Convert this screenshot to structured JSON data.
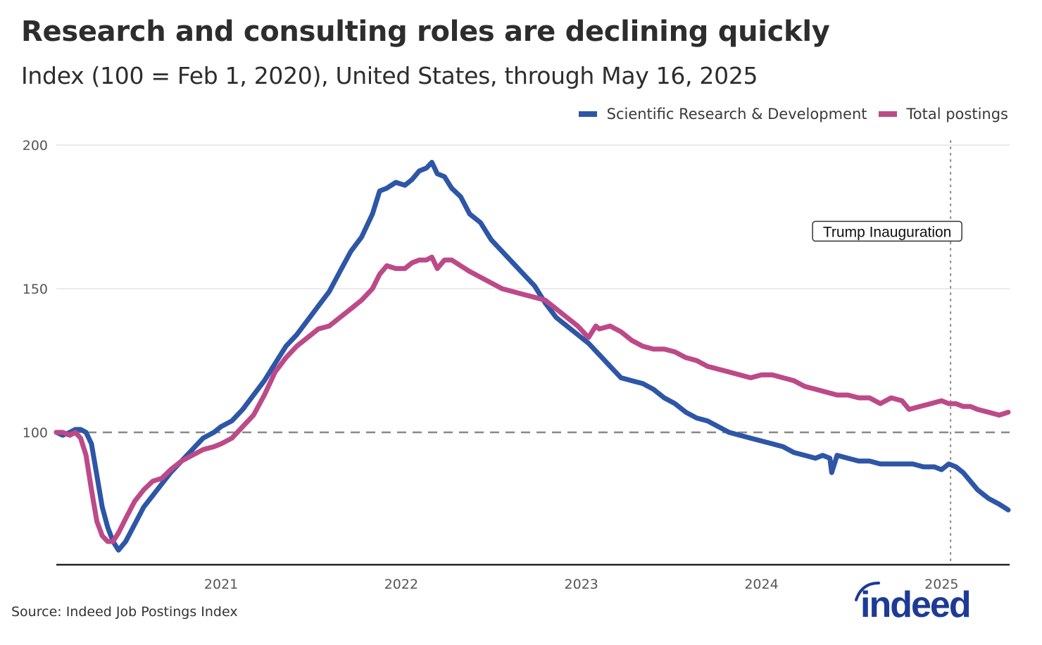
{
  "title": "Research and consulting roles are declining quickly",
  "subtitle": "Index (100 = Feb 1, 2020), United States, through May 16, 2025",
  "source": "Source: Indeed Job Postings Index",
  "logo_text": "indeed",
  "colors": {
    "research": "#2E56A6",
    "total": "#BC4A88",
    "grid": "#e3e3e3",
    "baseline": "#888888",
    "axis": "#222222",
    "logo": "#1d3b96"
  },
  "chart_data": {
    "type": "line",
    "title": "Research and consulting roles are declining quickly",
    "subtitle": "Index (100 = Feb 1, 2020), United States, through May 16, 2025",
    "xlabel": "",
    "ylabel": "",
    "x_unit": "decimal year",
    "xlim": [
      2020.085,
      2025.37
    ],
    "ylim": [
      54,
      200
    ],
    "yticks": [
      100,
      150,
      200
    ],
    "ytick_labels": [
      "100",
      "150",
      "200"
    ],
    "xticks": [
      2021,
      2022,
      2023,
      2024,
      2025
    ],
    "xtick_labels": [
      "2021",
      "2022",
      "2023",
      "2024",
      "2025"
    ],
    "grid": "horizontal",
    "legend_position": "top-right",
    "reference_line": {
      "y": 100,
      "style": "dashed"
    },
    "annotations": [
      {
        "x": 2025.05,
        "text": "Trump Inauguration",
        "style": "dotted vertical line with boxed label",
        "label_y": 170
      }
    ],
    "series": [
      {
        "name": "Scientific Research & Development",
        "color": "#2E56A6",
        "x": [
          2020.085,
          2020.12,
          2020.16,
          2020.19,
          2020.22,
          2020.25,
          2020.28,
          2020.31,
          2020.34,
          2020.37,
          2020.4,
          2020.43,
          2020.47,
          2020.52,
          2020.57,
          2020.62,
          2020.67,
          2020.72,
          2020.78,
          2020.84,
          2020.9,
          2020.96,
          2021.0,
          2021.06,
          2021.12,
          2021.18,
          2021.24,
          2021.3,
          2021.36,
          2021.42,
          2021.48,
          2021.54,
          2021.6,
          2021.66,
          2021.72,
          2021.78,
          2021.84,
          2021.88,
          2021.92,
          2021.97,
          2022.02,
          2022.06,
          2022.1,
          2022.14,
          2022.17,
          2022.2,
          2022.24,
          2022.28,
          2022.33,
          2022.38,
          2022.44,
          2022.5,
          2022.56,
          2022.62,
          2022.68,
          2022.74,
          2022.8,
          2022.86,
          2022.92,
          2022.98,
          2023.04,
          2023.1,
          2023.16,
          2023.22,
          2023.28,
          2023.34,
          2023.4,
          2023.46,
          2023.52,
          2023.58,
          2023.64,
          2023.7,
          2023.76,
          2023.82,
          2023.88,
          2023.94,
          2024.0,
          2024.06,
          2024.12,
          2024.18,
          2024.24,
          2024.3,
          2024.34,
          2024.38,
          2024.39,
          2024.42,
          2024.48,
          2024.54,
          2024.6,
          2024.66,
          2024.72,
          2024.78,
          2024.84,
          2024.9,
          2024.96,
          2025.0,
          2025.04,
          2025.08,
          2025.12,
          2025.16,
          2025.2,
          2025.26,
          2025.32,
          2025.37
        ],
        "values": [
          100,
          99,
          100,
          101,
          101,
          100,
          96,
          85,
          74,
          67,
          62,
          59,
          62,
          68,
          74,
          78,
          82,
          86,
          90,
          94,
          98,
          100,
          102,
          104,
          108,
          113,
          118,
          124,
          130,
          134,
          139,
          144,
          149,
          156,
          163,
          168,
          176,
          184,
          185,
          187,
          186,
          188,
          191,
          192,
          194,
          190,
          189,
          185,
          182,
          176,
          173,
          167,
          163,
          159,
          155,
          151,
          145,
          140,
          137,
          134,
          131,
          127,
          123,
          119,
          118,
          117,
          115,
          112,
          110,
          107,
          105,
          104,
          102,
          100,
          99,
          98,
          97,
          96,
          95,
          93,
          92,
          91,
          92,
          91,
          86,
          92,
          91,
          90,
          90,
          89,
          89,
          89,
          89,
          88,
          88,
          87,
          89,
          88,
          86,
          83,
          80,
          77,
          75,
          73
        ]
      },
      {
        "name": "Total postings",
        "color": "#BC4A88",
        "x": [
          2020.085,
          2020.12,
          2020.16,
          2020.19,
          2020.22,
          2020.25,
          2020.28,
          2020.31,
          2020.34,
          2020.37,
          2020.4,
          2020.43,
          2020.47,
          2020.52,
          2020.57,
          2020.62,
          2020.67,
          2020.72,
          2020.78,
          2020.84,
          2020.9,
          2020.96,
          2021.0,
          2021.06,
          2021.12,
          2021.18,
          2021.24,
          2021.3,
          2021.36,
          2021.42,
          2021.48,
          2021.54,
          2021.6,
          2021.66,
          2021.72,
          2021.78,
          2021.84,
          2021.88,
          2021.92,
          2021.97,
          2022.02,
          2022.06,
          2022.1,
          2022.14,
          2022.17,
          2022.2,
          2022.24,
          2022.28,
          2022.33,
          2022.38,
          2022.44,
          2022.5,
          2022.56,
          2022.62,
          2022.68,
          2022.74,
          2022.8,
          2022.86,
          2022.92,
          2022.98,
          2023.04,
          2023.08,
          2023.1,
          2023.16,
          2023.22,
          2023.28,
          2023.34,
          2023.4,
          2023.46,
          2023.52,
          2023.58,
          2023.64,
          2023.7,
          2023.76,
          2023.82,
          2023.88,
          2023.94,
          2024.0,
          2024.06,
          2024.12,
          2024.18,
          2024.24,
          2024.3,
          2024.36,
          2024.42,
          2024.48,
          2024.54,
          2024.6,
          2024.66,
          2024.72,
          2024.78,
          2024.82,
          2024.88,
          2024.94,
          2025.0,
          2025.04,
          2025.08,
          2025.12,
          2025.16,
          2025.2,
          2025.26,
          2025.32,
          2025.37
        ],
        "values": [
          100,
          100,
          99,
          100,
          98,
          92,
          80,
          69,
          64,
          62,
          62,
          65,
          70,
          76,
          80,
          83,
          84,
          87,
          90,
          92,
          94,
          95,
          96,
          98,
          102,
          106,
          113,
          121,
          126,
          130,
          133,
          136,
          137,
          140,
          143,
          146,
          150,
          155,
          158,
          157,
          157,
          159,
          160,
          160,
          161,
          157,
          160,
          160,
          158,
          156,
          154,
          152,
          150,
          149,
          148,
          147,
          146,
          143,
          140,
          137,
          133,
          137,
          136,
          137,
          135,
          132,
          130,
          129,
          129,
          128,
          126,
          125,
          123,
          122,
          121,
          120,
          119,
          120,
          120,
          119,
          118,
          116,
          115,
          114,
          113,
          113,
          112,
          112,
          110,
          112,
          111,
          108,
          109,
          110,
          111,
          110,
          110,
          109,
          109,
          108,
          107,
          106,
          107
        ]
      }
    ]
  }
}
